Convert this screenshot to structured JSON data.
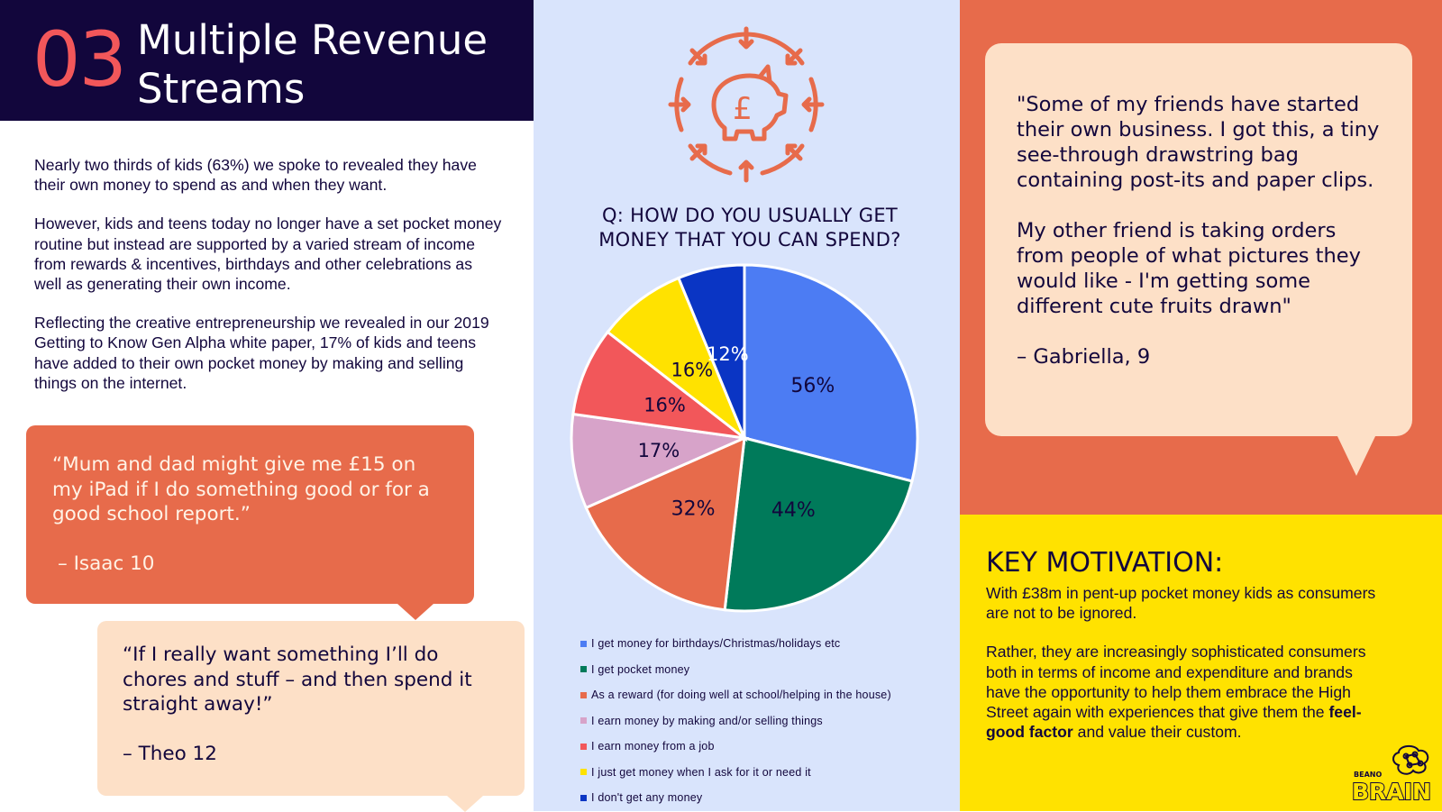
{
  "header": {
    "number": "03",
    "title_line1": "Multiple Revenue",
    "title_line2": "Streams"
  },
  "intro": {
    "p1": "Nearly two thirds of kids (63%) we spoke to revealed they have their own money to spend as and when they want.",
    "p2": "However, kids and teens today no longer have a set pocket money routine but instead are supported by a varied stream of income from rewards & incentives, birthdays and other celebrations as well as generating their own income.",
    "p3": "Reflecting the creative entrepreneurship we revealed in our 2019 Getting to Know Gen Alpha white paper, 17% of kids and teens have added to their own pocket money by making and selling things on the internet."
  },
  "quote_isaac": {
    "text": "“Mum and dad might give me £15 on my iPad if I do something good or for a good school report.”",
    "author": "– Isaac 10"
  },
  "quote_theo": {
    "text": "“If I really want something I’ll do chores and stuff – and then spend it straight away!”",
    "author": "– Theo 12"
  },
  "quote_gabriella": {
    "p1": "\"Some of my friends have started their own business. I got this, a tiny see-through drawstring bag containing post-its and paper clips.",
    "p2": "My other friend is taking orders from people of what pictures they would like - I'm getting some different cute fruits drawn\"",
    "author": "– Gabriella, 9"
  },
  "key_motivation": {
    "title": "KEY MOTIVATION:",
    "p1": "With £38m in pent-up pocket money kids as consumers are not to be ignored.",
    "p2_before": "Rather, they are increasingly sophisticated consumers both in terms of income and expenditure and brands have the opportunity to help them embrace the High Street again with experiences that give them the ",
    "p2_bold": "feel-good factor",
    "p2_after": " and value their custom."
  },
  "logo": {
    "line1": "BEANO",
    "line2": "BRAIN"
  },
  "icon": {
    "symbol": "£"
  },
  "colors": {
    "navy": "#12063c",
    "coral": "#f2575a",
    "orange": "#e76b4b",
    "peach": "#fde0c7",
    "yellow": "#ffe200",
    "light_blue": "#d9e4fc"
  },
  "chart_data": {
    "type": "pie",
    "title": "Q: HOW DO YOU USUALLY GET MONEY THAT YOU CAN SPEND?",
    "value_suffix": "%",
    "slices": [
      {
        "label": "I get money for birthdays/Christmas/holidays etc",
        "value": 56,
        "color": "#4c7cf3",
        "text_color": "#12063c"
      },
      {
        "label": "I get pocket money",
        "value": 44,
        "color": "#007a5a",
        "text_color": "#12063c"
      },
      {
        "label": "As a reward (for doing well at school/helping in the house)",
        "value": 32,
        "color": "#e76b4b",
        "text_color": "#12063c"
      },
      {
        "label": "I earn money by making and/or selling things",
        "value": 17,
        "color": "#d7a3c9",
        "text_color": "#12063c"
      },
      {
        "label": "I earn money from a job",
        "value": 16,
        "color": "#f2575a",
        "text_color": "#12063c"
      },
      {
        "label": "I just get money when I ask for it or need it",
        "value": 16,
        "color": "#ffe200",
        "text_color": "#12063c"
      },
      {
        "label": "I don't get any money",
        "value": 12,
        "color": "#0a35c4",
        "text_color": "#ffffff"
      }
    ]
  }
}
